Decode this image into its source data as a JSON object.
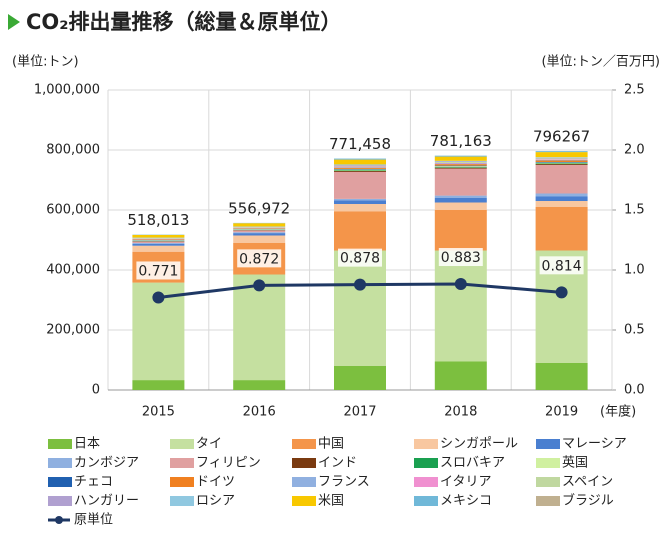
{
  "chart_data": {
    "type": "bar",
    "title": "CO₂排出量推移（総量＆原単位）",
    "y_label": "(単位:トン)",
    "y2_label": "(単位:トン／百万円)",
    "x_label": "(年度)",
    "categories": [
      "2015",
      "2016",
      "2017",
      "2018",
      "2019"
    ],
    "stacked": true,
    "grid": true,
    "ylim": [
      0,
      1000000
    ],
    "yticks": [
      0,
      {
        "value": 200000,
        "label": "200,000"
      },
      {
        "value": 400000,
        "label": "400,000"
      },
      {
        "value": 600000,
        "label": "600,000"
      },
      {
        "value": 800000,
        "label": "800,000"
      },
      {
        "value": 1000000,
        "label": "1,000,000"
      }
    ],
    "y2lim": [
      0,
      2.5
    ],
    "y2ticks": [
      {
        "value": 0,
        "label": "0.0"
      },
      0.5,
      {
        "value": 1,
        "label": "1.0"
      },
      1.5,
      {
        "value": 2,
        "label": "2.0"
      },
      2.5
    ],
    "series": [
      {
        "name": "日本",
        "color": "#7cbf3f",
        "values": [
          33000,
          33000,
          80000,
          95000,
          90000
        ]
      },
      {
        "name": "タイ",
        "color": "#c5e0a0",
        "values": [
          325000,
          352000,
          385000,
          370000,
          375000
        ]
      },
      {
        "name": "中国",
        "color": "#f4954a",
        "values": [
          103000,
          105000,
          130000,
          135000,
          145000
        ]
      },
      {
        "name": "シンガポール",
        "color": "#f8c7a0",
        "values": [
          20000,
          25000,
          25000,
          25000,
          20000
        ]
      },
      {
        "name": "マレーシア",
        "color": "#4a7fd0",
        "values": [
          6000,
          8000,
          12000,
          15000,
          15000
        ]
      },
      {
        "name": "カンボジア",
        "color": "#8fb0e0",
        "values": [
          3000,
          3000,
          5000,
          8000,
          10000
        ]
      },
      {
        "name": "フィリピン",
        "color": "#e0a0a0",
        "values": [
          5000,
          6000,
          90000,
          90000,
          95000
        ]
      },
      {
        "name": "インド",
        "color": "#7a3a10",
        "values": [
          1000,
          1000,
          3000,
          3000,
          3000
        ]
      },
      {
        "name": "スロバキア",
        "color": "#1aa050",
        "values": [
          1000,
          1000,
          2000,
          2000,
          2000
        ]
      },
      {
        "name": "英国",
        "color": "#d0f0a0",
        "values": [
          2000,
          2000,
          3000,
          3000,
          3000
        ]
      },
      {
        "name": "チェコ",
        "color": "#2060b0",
        "values": [
          1000,
          1000,
          2000,
          2000,
          2000
        ]
      },
      {
        "name": "ドイツ",
        "color": "#f08020",
        "values": [
          2000,
          2000,
          4000,
          5000,
          5000
        ]
      },
      {
        "name": "フランス",
        "color": "#90b0e0",
        "values": [
          1000,
          1000,
          2000,
          2000,
          2000
        ]
      },
      {
        "name": "イタリア",
        "color": "#f090d0",
        "values": [
          1000,
          1000,
          2000,
          2000,
          2000
        ]
      },
      {
        "name": "スペイン",
        "color": "#c0d8a0",
        "values": [
          2000,
          2000,
          3000,
          3000,
          3000
        ]
      },
      {
        "name": "ハンガリー",
        "color": "#b0a0d0",
        "values": [
          1000,
          1000,
          2000,
          2000,
          2000
        ]
      },
      {
        "name": "ロシア",
        "color": "#90c8e0",
        "values": [
          1000,
          1000,
          2000,
          2000,
          2000
        ]
      },
      {
        "name": "米国",
        "color": "#f8c800",
        "values": [
          9000,
          11000,
          16000,
          14000,
          17000
        ]
      },
      {
        "name": "メキシコ",
        "color": "#70b8d8",
        "values": [
          1000,
          1000,
          3458,
          3163,
          3267
        ]
      },
      {
        "name": "ブラジル",
        "color": "#c0b090",
        "values": [
          0,
          0,
          0,
          0,
          0
        ]
      },
      {
        "name": "原単位",
        "color": "#1f3864",
        "type": "line",
        "axis": "y2",
        "values": [
          0.771,
          0.872,
          0.878,
          0.883,
          0.814
        ]
      }
    ],
    "totals": {
      "values": [
        518013,
        556972,
        771458,
        781163,
        796267
      ],
      "value_labels": [
        "518,013",
        "556,972",
        "771,458",
        "781,163",
        "796267"
      ]
    }
  }
}
